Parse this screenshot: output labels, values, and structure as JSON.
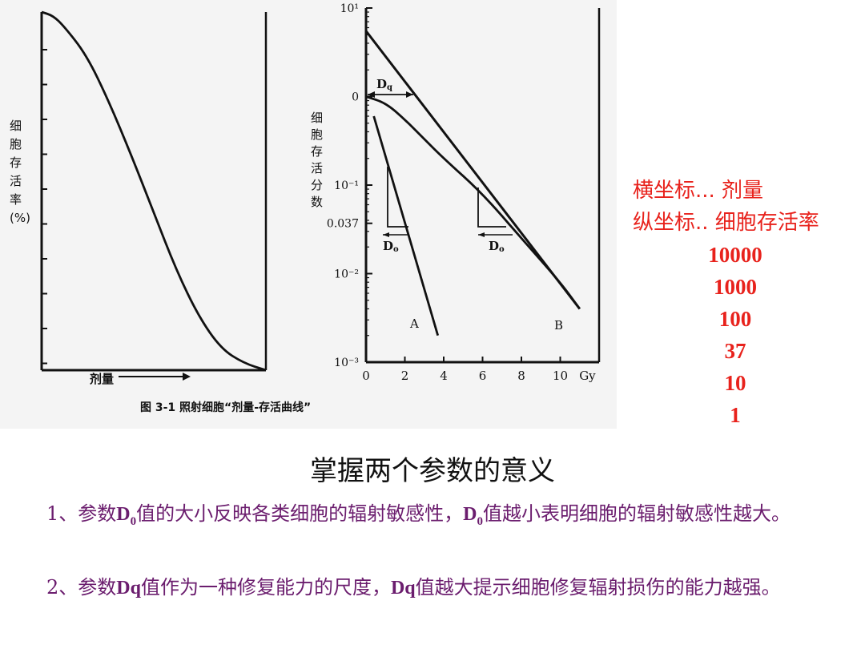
{
  "chart_data": [
    {
      "type": "line",
      "title": "",
      "ylabel": "细胞存活率(%)",
      "xlabel": "剂量",
      "series": [
        {
          "values": [
            [
              0,
              100
            ],
            [
              0.05,
              99
            ],
            [
              0.1,
              96
            ],
            [
              0.2,
              88
            ],
            [
              0.3,
              75
            ],
            [
              0.4,
              60
            ],
            [
              0.5,
              44
            ],
            [
              0.6,
              28
            ],
            [
              0.7,
              15
            ],
            [
              0.8,
              6
            ],
            [
              0.9,
              2
            ],
            [
              1.0,
              0
            ]
          ]
        }
      ],
      "ylim": [
        0,
        100
      ],
      "xlim": [
        0,
        1
      ],
      "grid": false
    },
    {
      "type": "line",
      "title": "",
      "ylabel": "细胞存活分数",
      "xlabel": "Gy",
      "yscale": "log",
      "x_ticks": [
        "0",
        "2",
        "4",
        "6",
        "8",
        "10",
        "Gy"
      ],
      "y_ticks": [
        "10¹",
        "0",
        "10⁻¹",
        "0.037",
        "10⁻²",
        "10⁻³"
      ],
      "ylim": [
        0.001,
        10
      ],
      "xlim": [
        0,
        12
      ],
      "series": [
        {
          "name": "A",
          "values": [
            [
              0.4,
              0.6
            ],
            [
              3.7,
              0.002
            ]
          ]
        },
        {
          "name": "B",
          "values": [
            [
              0,
              1.0
            ],
            [
              1,
              0.85
            ],
            [
              2,
              0.55
            ],
            [
              3,
              0.33
            ],
            [
              4,
              0.2
            ],
            [
              6,
              0.08
            ],
            [
              8,
              0.025
            ],
            [
              10,
              0.008
            ],
            [
              11,
              0.004
            ]
          ]
        },
        {
          "values": [
            [
              0,
              5.5
            ],
            [
              11,
              0.004
            ]
          ]
        }
      ],
      "annotations": [
        "Dq",
        "D0",
        "D0",
        "A",
        "B"
      ]
    }
  ],
  "figure_caption": "图 3-1   照射细胞“剂量-存活曲线”",
  "left_ylabel_chars": [
    "细",
    "胞",
    "存",
    "活",
    "率",
    "(%)"
  ],
  "right_ylabel_chars": [
    "细",
    "胞",
    "存",
    "活",
    "分",
    "数"
  ],
  "dose_label": "剂量",
  "dq_label": "D",
  "dq_sub": "q",
  "d0_label": "D",
  "d0_sub": "o",
  "curve_a_label": "A",
  "curve_b_label": "B",
  "side_notes": {
    "line1": "横坐标...  剂量",
    "line2": "纵坐标.. 细胞存活率",
    "numbers": [
      "10000",
      "1000",
      "100",
      "37",
      "10",
      "1"
    ]
  },
  "heading": "掌握两个参数的意义",
  "para1": {
    "pre": "1、参数",
    "d": "D",
    "sub": "0",
    "mid": "值的大小反映各类细胞的辐射敏感性，",
    "d2": "D",
    "sub2": "0",
    "post": "值越小表明细胞的辐射敏感性越大。"
  },
  "para2": {
    "pre": "2、参数",
    "dq": "Dq",
    "mid": "值作为一种修复能力的尺度，",
    "dq2": "Dq",
    "post": "值越大提示细胞修复辐射损伤的能力越强。"
  }
}
